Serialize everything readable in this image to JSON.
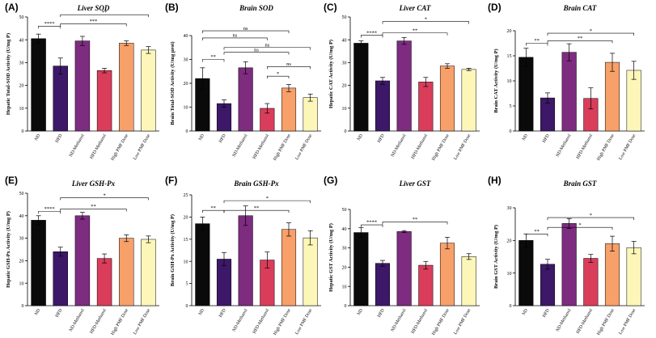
{
  "colors": {
    "ND": "#0a0a0a",
    "HFD": "#3d1868",
    "ND-Methanol": "#7d2c80",
    "HFD-Methanol": "#d93d5a",
    "High PMF Dose": "#f7a06a",
    "Low PMF Dose": "#fcf6b8"
  },
  "chart_data": [
    {
      "type": "bar",
      "label": "(A)",
      "title": "Liver SOD",
      "ylabel": "Hepatic Total-SOD Activity (U/mg P)",
      "categories": [
        "ND",
        "HFD",
        "ND-Methanol",
        "HFD-Methanol",
        "High PMF Dose",
        "Low PMF Dose"
      ],
      "values": [
        40.5,
        28.5,
        39.5,
        26.5,
        38.5,
        35.5
      ],
      "errors": [
        2.0,
        3.5,
        2.0,
        1.0,
        1.0,
        1.5
      ],
      "ylim": [
        0,
        50
      ],
      "yticks": [
        0,
        10,
        20,
        30,
        40,
        50
      ],
      "brackets": [
        {
          "from": 0,
          "to": 1,
          "value": 46,
          "label": "****"
        },
        {
          "from": 1,
          "to": 4,
          "value": 47,
          "label": "***"
        },
        {
          "from": 1,
          "to": 5,
          "value": 51,
          "label": "**"
        }
      ]
    },
    {
      "type": "bar",
      "label": "(B)",
      "title": "Brain SOD",
      "ylabel": "Brain Total-SOD Activity (U/mg prot)",
      "categories": [
        "ND",
        "HFD",
        "ND-Methanol",
        "HFD-Methanol",
        "High PMF Dose",
        "Low PMF Dose"
      ],
      "values": [
        22,
        11.5,
        26.5,
        9.5,
        18,
        14
      ],
      "errors": [
        4.5,
        1.5,
        2.5,
        2.0,
        1.5,
        1.5
      ],
      "ylim": [
        0,
        40
      ],
      "yticks": [
        0,
        10,
        20,
        30,
        40
      ],
      "brackets": [
        {
          "from": 0,
          "to": 1,
          "value": 30,
          "label": "**"
        },
        {
          "from": 1,
          "to": 4,
          "value": 33,
          "label": "ns"
        },
        {
          "from": 1,
          "to": 5,
          "value": 35,
          "label": "ns"
        },
        {
          "from": 0,
          "to": 3,
          "value": 39,
          "label": "ns"
        },
        {
          "from": 0,
          "to": 4,
          "value": 42,
          "label": "ns"
        },
        {
          "from": 3,
          "to": 4,
          "value": 23,
          "label": "*"
        },
        {
          "from": 3,
          "to": 5,
          "value": 27,
          "label": "ns"
        }
      ]
    },
    {
      "type": "bar",
      "label": "(C)",
      "title": "Liver CAT",
      "ylabel": "Hepatic CAT Activity (U/mg P)",
      "categories": [
        "ND",
        "HFD",
        "ND-Methanol",
        "HFD-Methanol",
        "High PMF Dose",
        "Low PMF Dose"
      ],
      "values": [
        38.5,
        22,
        39.5,
        21.5,
        28.5,
        27
      ],
      "errors": [
        1.0,
        1.5,
        1.5,
        2.0,
        1.0,
        0.5
      ],
      "ylim": [
        0,
        50
      ],
      "yticks": [
        0,
        10,
        20,
        30,
        40,
        50
      ],
      "brackets": [
        {
          "from": 0,
          "to": 1,
          "value": 42,
          "label": "****"
        },
        {
          "from": 1,
          "to": 4,
          "value": 43,
          "label": "**"
        },
        {
          "from": 1,
          "to": 5,
          "value": 48,
          "label": "*"
        }
      ]
    },
    {
      "type": "bar",
      "label": "(D)",
      "title": "Brain CAT",
      "ylabel": "Brain CAT Activity (U/mg P)",
      "categories": [
        "ND",
        "HFD",
        "ND-Methanol",
        "HFD-Methanol",
        "High PMF Dose",
        "Low PMF Dose"
      ],
      "values": [
        14.7,
        6.6,
        15.7,
        6.5,
        13.7,
        12.1
      ],
      "errors": [
        1.8,
        1.0,
        1.7,
        2.1,
        1.8,
        1.8
      ],
      "ylim": [
        0,
        20
      ],
      "yticks": [
        0,
        5,
        10,
        15,
        20
      ],
      "brackets": [
        {
          "from": 0,
          "to": 1,
          "value": 17.5,
          "label": "**"
        },
        {
          "from": 1,
          "to": 4,
          "value": 18,
          "label": "**"
        },
        {
          "from": 1,
          "to": 5,
          "value": 19.5,
          "label": "*"
        }
      ]
    },
    {
      "type": "bar",
      "label": "(E)",
      "title": "Liver GSH-Px",
      "ylabel": "Hepatic GSH-Px Activity (U/mg P)",
      "categories": [
        "ND",
        "HFD",
        "ND-Methanol",
        "HFD-Methanol",
        "High PMF Dose",
        "Low PMF Dose"
      ],
      "values": [
        38,
        24,
        40,
        21,
        30,
        29.5
      ],
      "errors": [
        2.0,
        2.0,
        1.5,
        2.0,
        1.5,
        1.5
      ],
      "ylim": [
        0,
        50
      ],
      "yticks": [
        0,
        10,
        20,
        30,
        40,
        50
      ],
      "brackets": [
        {
          "from": 0,
          "to": 1,
          "value": 42,
          "label": "****"
        },
        {
          "from": 1,
          "to": 4,
          "value": 43,
          "label": "**"
        },
        {
          "from": 1,
          "to": 5,
          "value": 48,
          "label": "*"
        }
      ]
    },
    {
      "type": "bar",
      "label": "(F)",
      "title": "Brain GSH-Px",
      "ylabel": "Brain GSH-Px Activity (U/mg P)",
      "categories": [
        "ND",
        "HFD",
        "ND-Methanol",
        "HFD-Methanol",
        "High PMF Dose",
        "Low PMF Dose"
      ],
      "values": [
        18.5,
        10.5,
        20.3,
        10.3,
        17.2,
        15.3
      ],
      "errors": [
        1.5,
        1.5,
        2.2,
        1.8,
        1.5,
        1.6
      ],
      "ylim": [
        0,
        25
      ],
      "yticks": [
        0,
        5,
        10,
        15,
        20,
        25
      ],
      "brackets": [
        {
          "from": 0,
          "to": 1,
          "value": 21.5,
          "label": "**"
        },
        {
          "from": 1,
          "to": 4,
          "value": 21.5,
          "label": "**"
        },
        {
          "from": 1,
          "to": 5,
          "value": 23.7,
          "label": "*"
        }
      ]
    },
    {
      "type": "bar",
      "label": "(G)",
      "title": "Liver GST",
      "ylabel": "Hepatic GST Activity (U/mg P)",
      "categories": [
        "ND",
        "HFD",
        "ND-Methanol",
        "HFD-Methanol",
        "High PMF Dose",
        "Low PMF Dose"
      ],
      "values": [
        38,
        22,
        38.5,
        21,
        32.5,
        25.5
      ],
      "errors": [
        2.5,
        1.5,
        0.5,
        2.0,
        3.0,
        1.5
      ],
      "ylim": [
        0,
        50
      ],
      "yticks": [
        0,
        10,
        20,
        30,
        40,
        50
      ],
      "brackets": [
        {
          "from": 0,
          "to": 1,
          "value": 42,
          "label": "****"
        },
        {
          "from": 1,
          "to": 4,
          "value": 43.5,
          "label": "**"
        }
      ]
    },
    {
      "type": "bar",
      "label": "(H)",
      "title": "Brain GST",
      "ylabel": "Brain GST Activity (U/mg P)",
      "categories": [
        "ND",
        "HFD",
        "ND-Methanol",
        "HFD-Methanol",
        "High PMF Dose",
        "Low PMF Dose"
      ],
      "values": [
        20,
        12.7,
        25.2,
        14.5,
        19,
        17.8
      ],
      "errors": [
        2.0,
        1.5,
        1.5,
        1.2,
        2.3,
        1.9
      ],
      "ylim": [
        0,
        30
      ],
      "yticks": [
        0,
        10,
        20,
        30
      ],
      "brackets": [
        {
          "from": 0,
          "to": 1,
          "value": 22,
          "label": "**"
        },
        {
          "from": 1,
          "to": 4,
          "value": 24,
          "label": "*"
        },
        {
          "from": 1,
          "to": 5,
          "value": 27,
          "label": "*"
        }
      ]
    }
  ]
}
